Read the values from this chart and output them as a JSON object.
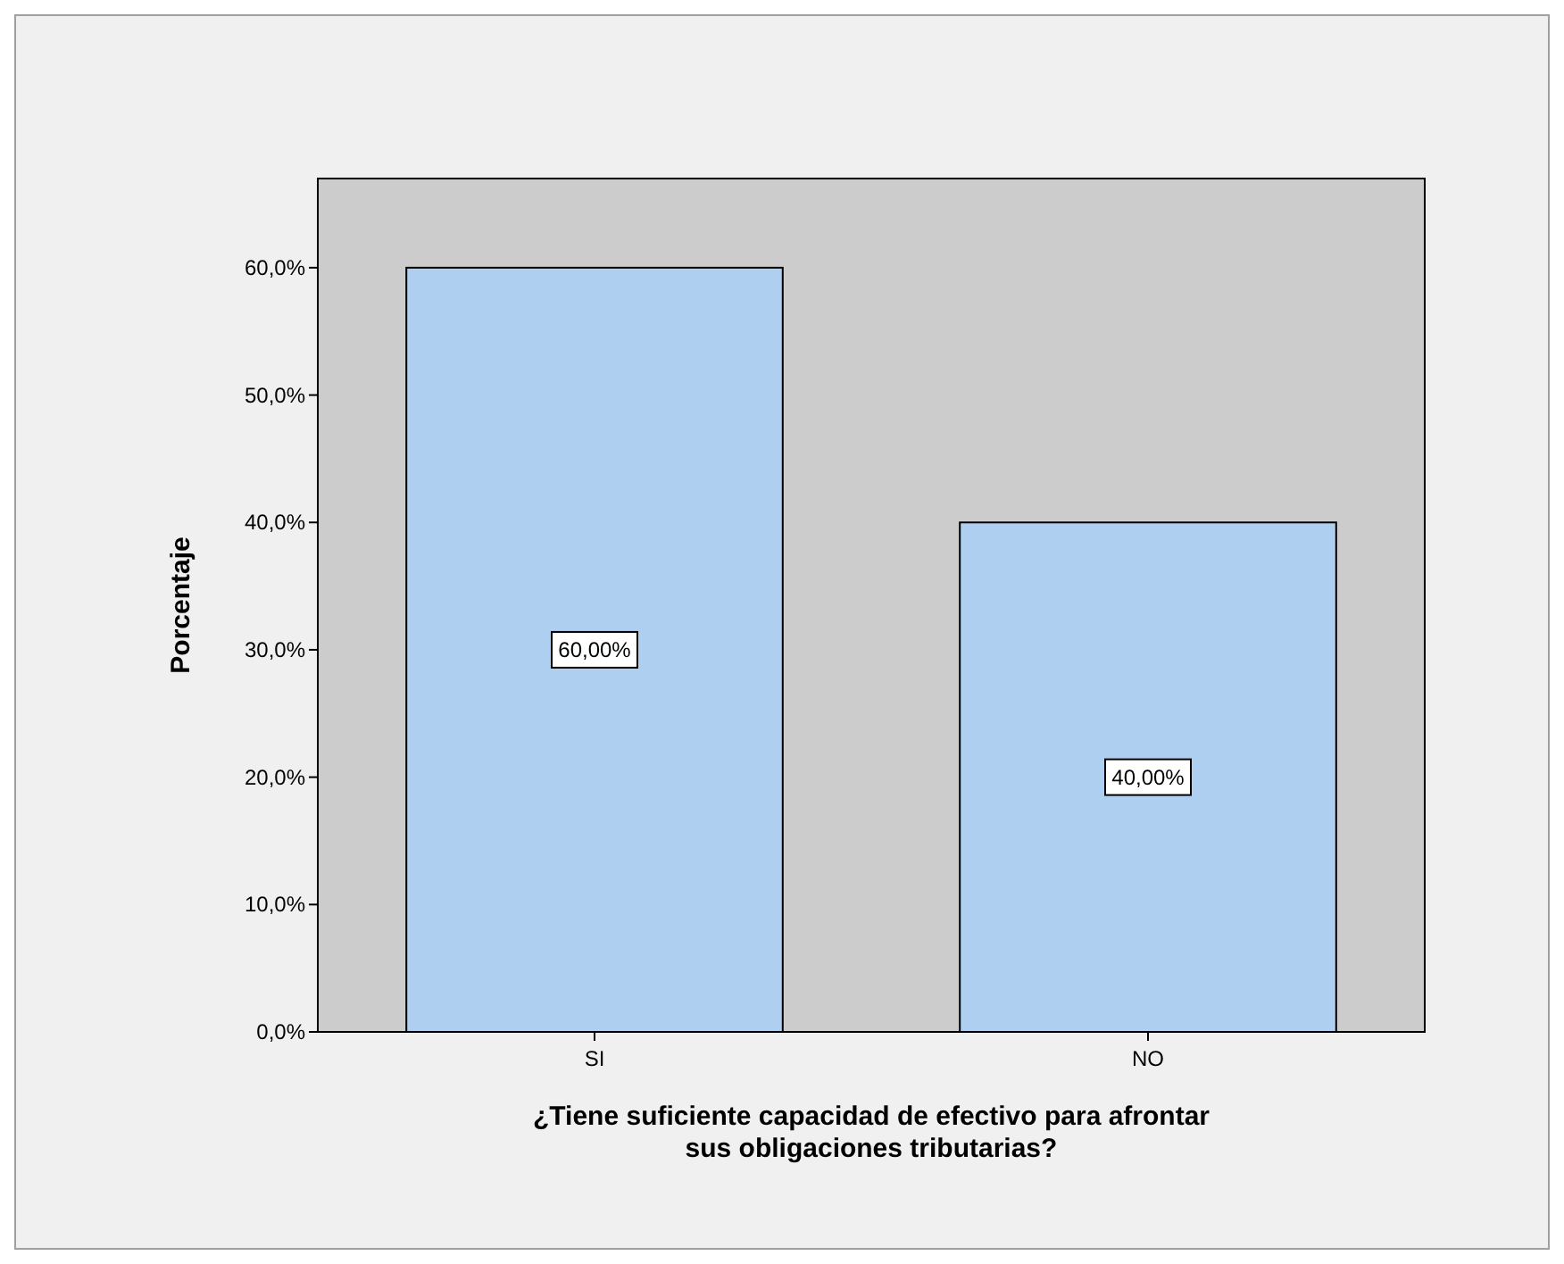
{
  "chart_data": {
    "type": "bar",
    "xlabel": "¿Tiene suficiente capacidad de efectivo para afrontar sus obligaciones tributarias?",
    "ylabel": "Porcentaje",
    "categories": [
      "SI",
      "NO"
    ],
    "values": [
      60,
      40
    ],
    "color": "#aecfef",
    "value_labels": [
      "60,00%",
      "40,00%"
    ],
    "ylim": [
      0,
      67
    ],
    "yticks": [
      {
        "value": 0,
        "label": "0,0%"
      },
      {
        "value": 10,
        "label": "10,0%"
      },
      {
        "value": 20,
        "label": "20,0%"
      },
      {
        "value": 30,
        "label": "30,0%"
      },
      {
        "value": 40,
        "label": "40,0%"
      },
      {
        "value": 50,
        "label": "50,0%"
      },
      {
        "value": 60,
        "label": "60,0%"
      }
    ],
    "grid": false
  }
}
